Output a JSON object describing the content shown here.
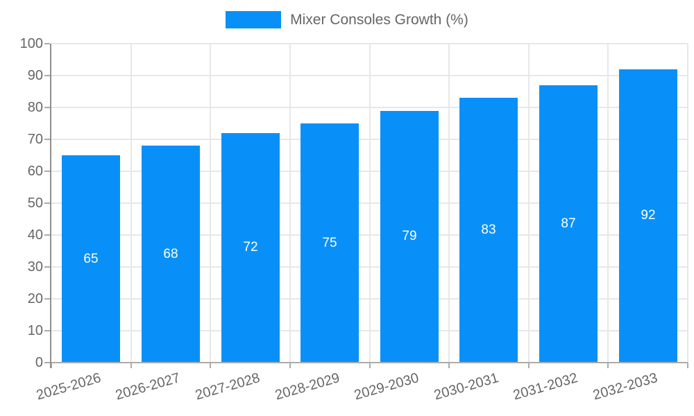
{
  "legend": {
    "label": "Mixer Consoles Growth (%)",
    "swatch_color": "#0990f8"
  },
  "chart_data": {
    "type": "bar",
    "title": "",
    "series_name": "Mixer Consoles Growth (%)",
    "categories": [
      "2025-2026",
      "2026-2027",
      "2027-2028",
      "2028-2029",
      "2029-2030",
      "2030-2031",
      "2031-2032",
      "2032-2033"
    ],
    "values": [
      65,
      68,
      72,
      75,
      79,
      83,
      87,
      92
    ],
    "value_labels_shown": true,
    "xlabel": "",
    "ylabel": "",
    "ylim": [
      0,
      100
    ],
    "yticks": [
      0,
      10,
      20,
      30,
      40,
      50,
      60,
      70,
      80,
      90,
      100
    ],
    "grid": true,
    "legend_position": "top-center",
    "colors": {
      "bar": "#0990f8",
      "value_label": "#ffffff",
      "axis_text": "#666666",
      "gridline": "#e7e7e7",
      "y_axis_line": "#8f8f8f",
      "x_axis_line": "#ababab"
    }
  }
}
